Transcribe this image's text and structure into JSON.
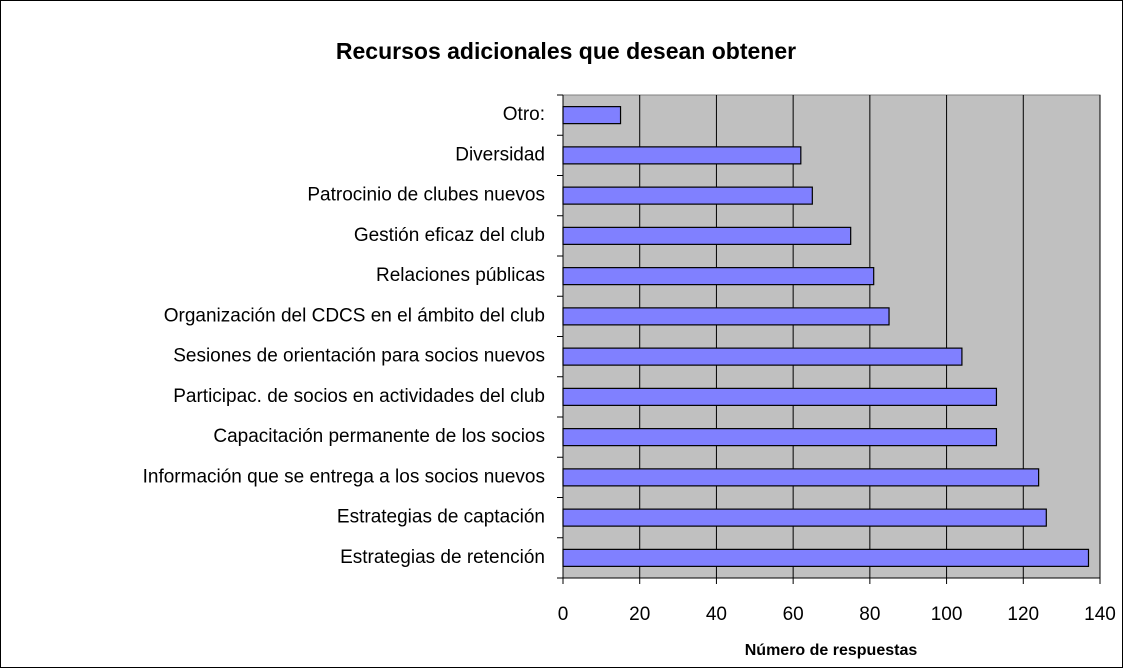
{
  "chart_data": {
    "type": "barh",
    "title": "Recursos adicionales que desean obtener",
    "xlabel": "Número de respuestas",
    "categories": [
      "Otro:",
      "Diversidad",
      "Patrocinio de clubes nuevos",
      "Gestión eficaz del club",
      "Relaciones públicas",
      "Organización del CDCS en el ámbito del club",
      "Sesiones de orientación para socios nuevos",
      "Participac. de socios en actividades del club",
      "Capacitación permanente de los socios",
      "Información que se entrega a los socios nuevos",
      "Estrategias de captación",
      "Estrategias de retención"
    ],
    "values": [
      15,
      62,
      65,
      75,
      81,
      85,
      104,
      113,
      113,
      124,
      126,
      137
    ],
    "color": "#8080ff",
    "xlim": [
      0,
      140
    ],
    "xticks": [
      0,
      20,
      40,
      60,
      80,
      100,
      120,
      140
    ],
    "grid": true
  }
}
